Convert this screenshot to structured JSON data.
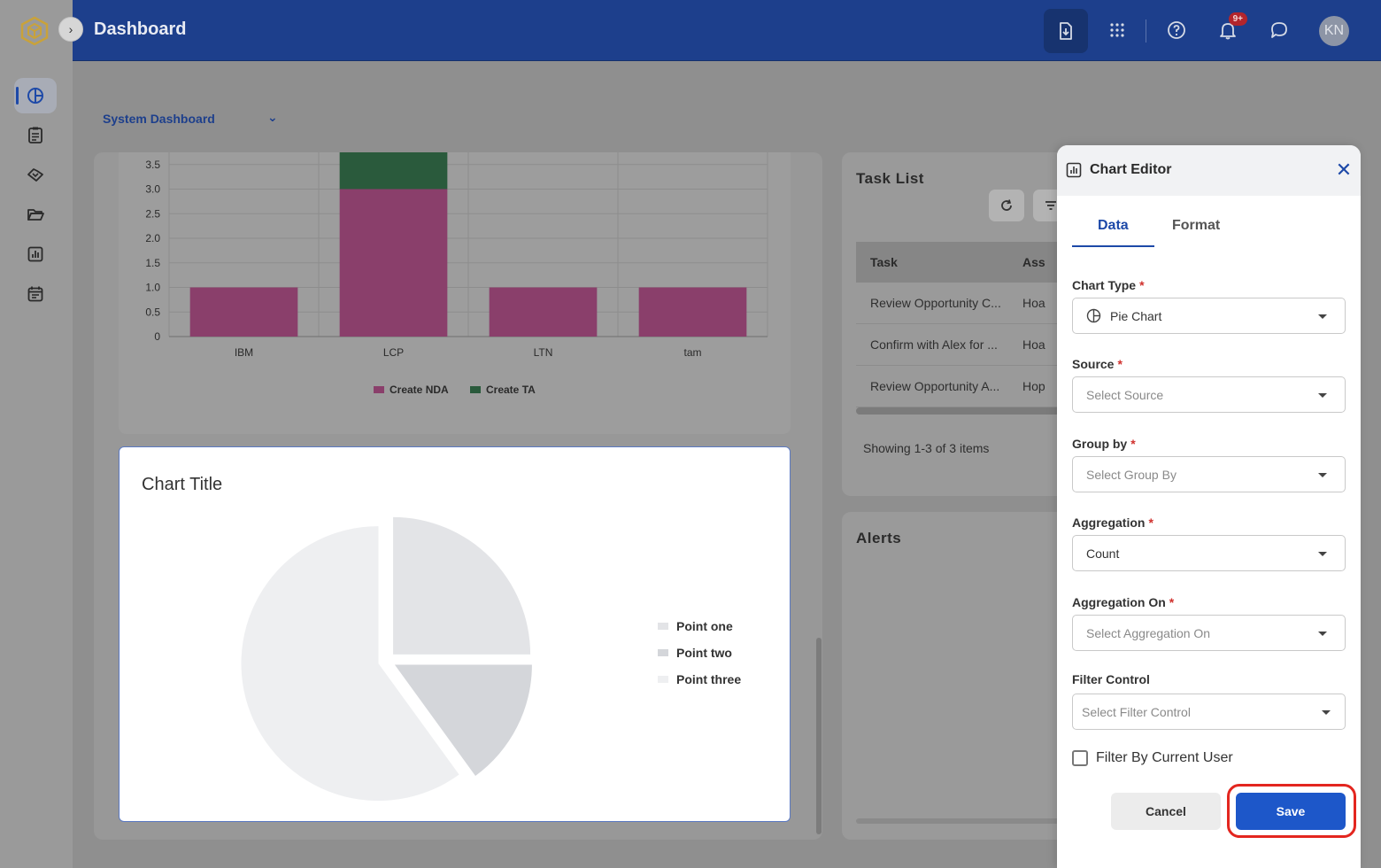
{
  "app": {
    "title": "Dashboard"
  },
  "topbar": {
    "notifications_badge": "9+",
    "avatar_initials": "KN"
  },
  "dashboard_selector": {
    "value": "System Dashboard"
  },
  "bar_chart": {
    "chart_data": {
      "type": "bar",
      "stacked": true,
      "categories": [
        "IBM",
        "LCP",
        "LTN",
        "tam"
      ],
      "series": [
        {
          "name": "Create NDA",
          "values": [
            1,
            3,
            1,
            1
          ],
          "color": "#8a3f6b"
        },
        {
          "name": "Create TA",
          "values": [
            0,
            0.75,
            0,
            0
          ],
          "color": "#2a5a3c"
        }
      ],
      "yticks": [
        "0",
        "0.5",
        "1.0",
        "1.5",
        "2.0",
        "2.5",
        "3.0",
        "3.5"
      ],
      "ylim": [
        0,
        3.75
      ]
    }
  },
  "pie_chart": {
    "title": "Chart Title",
    "chart_data": {
      "type": "pie",
      "labels": [
        "Point one",
        "Point two",
        "Point three"
      ],
      "values": [
        25,
        15,
        60
      ],
      "colors": [
        "#e3e4e7",
        "#d4d6da",
        "#eeeff1"
      ]
    }
  },
  "task_list": {
    "title": "Task List",
    "columns": [
      "Task",
      "Ass"
    ],
    "rows": [
      {
        "task": "Review Opportunity C...",
        "assignee": "Hoa"
      },
      {
        "task": "Confirm with Alex for ...",
        "assignee": "Hoa"
      },
      {
        "task": "Review Opportunity A...",
        "assignee": "Hop"
      }
    ],
    "footer": "Showing 1-3 of 3 items"
  },
  "alerts": {
    "title": "Alerts"
  },
  "chart_editor": {
    "title": "Chart Editor",
    "tabs": {
      "data": "Data",
      "format": "Format"
    },
    "fields": {
      "chart_type": {
        "label": "Chart Type",
        "value": "Pie Chart"
      },
      "source": {
        "label": "Source",
        "placeholder": "Select Source"
      },
      "group_by": {
        "label": "Group by",
        "placeholder": "Select Group By"
      },
      "aggregation": {
        "label": "Aggregation",
        "value": "Count"
      },
      "aggregation_on": {
        "label": "Aggregation On",
        "placeholder": "Select Aggregation On"
      },
      "filter_control": {
        "label": "Filter Control",
        "placeholder": "Select Filter Control"
      }
    },
    "required_mark": "*",
    "checkbox_label": "Filter By Current User",
    "cancel_label": "Cancel",
    "save_label": "Save"
  }
}
